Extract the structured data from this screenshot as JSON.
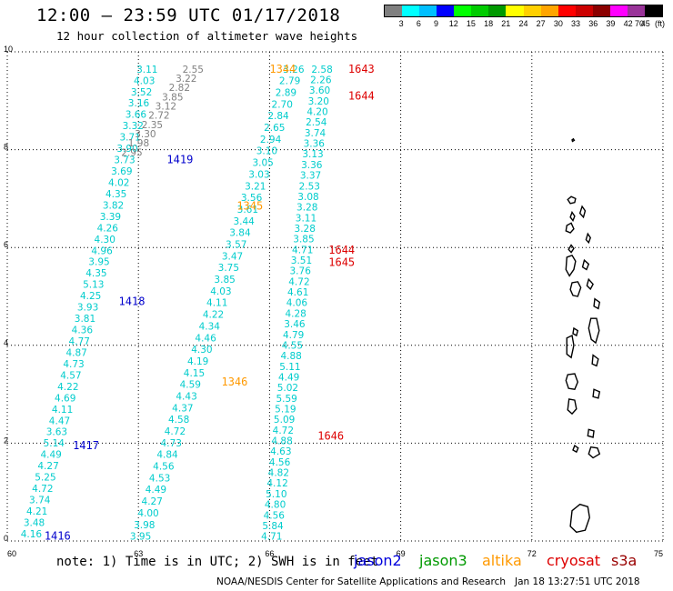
{
  "header": {
    "title": "12:00 – 23:59 UTC 01/17/2018",
    "subtitle": "12 hour collection of altimeter wave heights"
  },
  "legend": {
    "colors": [
      "#7f7f7f",
      "#00ffff",
      "#00bfff",
      "#0000ff",
      "#00ff00",
      "#00cc00",
      "#009900",
      "#ffff00",
      "#ffd000",
      "#ffa500",
      "#ff0000",
      "#cc0000",
      "#8b0000",
      "#ff00ff",
      "#993399",
      "#000000"
    ],
    "labels": [
      "3",
      "6",
      "9",
      "12",
      "15",
      "18",
      "21",
      "24",
      "27",
      "30",
      "33",
      "36",
      "39",
      "42",
      "45",
      "70"
    ],
    "unit": "(ft)"
  },
  "map": {
    "lon_min": 60,
    "lon_max": 75,
    "lat_min": 0,
    "lat_max": 10,
    "x_ticks": [
      "60",
      "63",
      "66",
      "69",
      "72",
      "75"
    ],
    "y_ticks": [
      "0",
      "2",
      "4",
      "6",
      "8",
      "10"
    ],
    "grid": "dotted",
    "tracks": [
      {
        "name": "pass_a",
        "lon": [
          60.55,
          63.2
        ],
        "lat": [
          0.15,
          9.65
        ],
        "color": "#00cccc",
        "values": [
          "4.16",
          "3.48",
          "4.21",
          "3.74",
          "4.72",
          "5.25",
          "4.27",
          "4.49",
          "5.14",
          "3.63",
          "4.47",
          "4.11",
          "4.69",
          "4.22",
          "4.57",
          "4.73",
          "4.87",
          "4.77",
          "4.36",
          "3.81",
          "3.93",
          "4.25",
          "5.13",
          "4.35",
          "3.95",
          "4.96",
          "4.30",
          "4.26",
          "3.39",
          "3.82",
          "4.35",
          "4.02",
          "3.69",
          "3.73",
          "3.90",
          "3.71",
          "3.32",
          "3.66",
          "3.16",
          "3.52",
          "4.03",
          "3.11"
        ]
      },
      {
        "name": "pass_b_upper",
        "lon": [
          62.85,
          64.25
        ],
        "lat": [
          7.95,
          9.65
        ],
        "color": "#808080",
        "values": [
          "2.95",
          "1.98",
          "3.30",
          "2.35",
          "2.72",
          "3.12",
          "3.85",
          "2.82",
          "3.22",
          "2.55"
        ]
      },
      {
        "name": "pass_c",
        "lon": [
          63.05,
          66.55
        ],
        "lat": [
          0.1,
          9.65
        ],
        "color": "#00cccc",
        "values": [
          "3.95",
          "3.98",
          "4.00",
          "4.27",
          "4.49",
          "4.53",
          "4.56",
          "4.84",
          "4.73",
          "4.72",
          "4.58",
          "4.37",
          "4.43",
          "4.59",
          "4.15",
          "4.19",
          "4.30",
          "4.46",
          "4.34",
          "4.22",
          "4.11",
          "4.03",
          "3.85",
          "3.75",
          "3.47",
          "3.57",
          "3.84",
          "3.44",
          "3.61",
          "3.56",
          "3.21",
          "3.03",
          "3.05",
          "3.10",
          "2.94",
          "2.65",
          "2.84",
          "2.70",
          "2.89",
          "2.79",
          "3.26"
        ]
      },
      {
        "name": "pass_d",
        "lon": [
          66.05,
          67.2
        ],
        "lat": [
          0.1,
          9.65
        ],
        "color": "#00cccc",
        "values": [
          "4.71",
          "5.84",
          "4.56",
          "4.80",
          "5.10",
          "4.12",
          "4.82",
          "4.56",
          "4.63",
          "4.88",
          "4.72",
          "5.09",
          "5.19",
          "5.59",
          "5.02",
          "4.49",
          "5.11",
          "4.88",
          "4.55",
          "4.79",
          "3.46",
          "4.28",
          "4.06",
          "4.61",
          "4.72",
          "3.76",
          "3.51",
          "4.71",
          "3.85",
          "3.28",
          "3.11",
          "3.28",
          "3.08",
          "2.53",
          "3.37",
          "3.36",
          "3.13",
          "3.36",
          "3.74",
          "2.54",
          "4.20",
          "3.20",
          "3.60",
          "2.26",
          "2.58"
        ]
      }
    ],
    "time_labels": [
      {
        "text": "1416",
        "lon": 61.15,
        "lat": 0.1,
        "color": "#0000cc"
      },
      {
        "text": "1417",
        "lon": 61.8,
        "lat": 1.95,
        "color": "#0000cc"
      },
      {
        "text": "1418",
        "lon": 62.85,
        "lat": 4.9,
        "color": "#0000cc"
      },
      {
        "text": "1419",
        "lon": 63.95,
        "lat": 7.8,
        "color": "#0000cc"
      },
      {
        "text": "1345",
        "lon": 65.55,
        "lat": 6.85,
        "color": "#ff9900"
      },
      {
        "text": "1346",
        "lon": 65.2,
        "lat": 3.25,
        "color": "#ff9900"
      },
      {
        "text": "1344",
        "lon": 66.3,
        "lat": 9.65,
        "color": "#ff9900"
      },
      {
        "text": "1643",
        "lon": 68.1,
        "lat": 9.65,
        "color": "#dd0000"
      },
      {
        "text": "1644",
        "lon": 68.1,
        "lat": 9.1,
        "color": "#dd0000"
      },
      {
        "text": "1644",
        "lon": 67.65,
        "lat": 5.95,
        "color": "#dd0000"
      },
      {
        "text": "1645",
        "lon": 67.65,
        "lat": 5.7,
        "color": "#dd0000"
      },
      {
        "text": "1646",
        "lon": 67.4,
        "lat": 2.15,
        "color": "#dd0000"
      }
    ],
    "islands": [
      [
        [
          72.92,
          8.2
        ],
        [
          72.95,
          8.22
        ],
        [
          72.97,
          8.19
        ],
        [
          72.93,
          8.17
        ]
      ],
      [
        [
          72.82,
          6.98
        ],
        [
          72.9,
          7.04
        ],
        [
          73.0,
          7.0
        ],
        [
          72.98,
          6.92
        ],
        [
          72.88,
          6.9
        ]
      ],
      [
        [
          73.15,
          6.84
        ],
        [
          73.22,
          6.75
        ],
        [
          73.18,
          6.62
        ],
        [
          73.1,
          6.7
        ]
      ],
      [
        [
          72.92,
          6.72
        ],
        [
          72.98,
          6.64
        ],
        [
          72.94,
          6.55
        ],
        [
          72.88,
          6.62
        ]
      ],
      [
        [
          72.8,
          6.45
        ],
        [
          72.9,
          6.5
        ],
        [
          72.96,
          6.38
        ],
        [
          72.88,
          6.3
        ],
        [
          72.78,
          6.34
        ]
      ],
      [
        [
          73.28,
          6.28
        ],
        [
          73.34,
          6.2
        ],
        [
          73.3,
          6.1
        ],
        [
          73.24,
          6.16
        ]
      ],
      [
        [
          72.9,
          6.05
        ],
        [
          72.96,
          5.98
        ],
        [
          72.9,
          5.9
        ],
        [
          72.84,
          5.96
        ]
      ],
      [
        [
          72.8,
          5.8
        ],
        [
          72.92,
          5.84
        ],
        [
          73.0,
          5.72
        ],
        [
          72.96,
          5.55
        ],
        [
          72.86,
          5.42
        ],
        [
          72.78,
          5.55
        ]
      ],
      [
        [
          73.2,
          5.74
        ],
        [
          73.3,
          5.66
        ],
        [
          73.25,
          5.55
        ],
        [
          73.16,
          5.6
        ]
      ],
      [
        [
          72.92,
          5.28
        ],
        [
          73.05,
          5.3
        ],
        [
          73.12,
          5.18
        ],
        [
          73.05,
          5.0
        ],
        [
          72.94,
          5.02
        ],
        [
          72.88,
          5.14
        ]
      ],
      [
        [
          73.3,
          5.35
        ],
        [
          73.4,
          5.25
        ],
        [
          73.34,
          5.15
        ],
        [
          73.26,
          5.22
        ]
      ],
      [
        [
          73.44,
          4.95
        ],
        [
          73.55,
          4.88
        ],
        [
          73.52,
          4.75
        ],
        [
          73.42,
          4.8
        ]
      ],
      [
        [
          73.35,
          4.55
        ],
        [
          73.48,
          4.55
        ],
        [
          73.54,
          4.3
        ],
        [
          73.46,
          4.05
        ],
        [
          73.36,
          4.12
        ],
        [
          73.3,
          4.35
        ]
      ],
      [
        [
          72.96,
          4.35
        ],
        [
          73.05,
          4.3
        ],
        [
          73.02,
          4.2
        ],
        [
          72.94,
          4.24
        ]
      ],
      [
        [
          72.8,
          4.15
        ],
        [
          72.92,
          4.2
        ],
        [
          72.96,
          4.0
        ],
        [
          72.9,
          3.75
        ],
        [
          72.8,
          3.82
        ]
      ],
      [
        [
          73.4,
          3.8
        ],
        [
          73.52,
          3.72
        ],
        [
          73.48,
          3.58
        ],
        [
          73.38,
          3.62
        ]
      ],
      [
        [
          72.82,
          3.4
        ],
        [
          72.98,
          3.42
        ],
        [
          73.05,
          3.25
        ],
        [
          72.98,
          3.1
        ],
        [
          72.84,
          3.12
        ],
        [
          72.78,
          3.28
        ]
      ],
      [
        [
          73.42,
          3.1
        ],
        [
          73.55,
          3.05
        ],
        [
          73.52,
          2.92
        ],
        [
          73.4,
          2.95
        ]
      ],
      [
        [
          72.85,
          2.9
        ],
        [
          72.98,
          2.88
        ],
        [
          73.02,
          2.7
        ],
        [
          72.92,
          2.6
        ],
        [
          72.82,
          2.68
        ]
      ],
      [
        [
          73.3,
          2.28
        ],
        [
          73.42,
          2.25
        ],
        [
          73.4,
          2.12
        ],
        [
          73.28,
          2.15
        ]
      ],
      [
        [
          73.35,
          1.92
        ],
        [
          73.5,
          1.9
        ],
        [
          73.55,
          1.78
        ],
        [
          73.4,
          1.7
        ],
        [
          73.3,
          1.78
        ]
      ],
      [
        [
          72.98,
          1.95
        ],
        [
          73.06,
          1.9
        ],
        [
          73.02,
          1.82
        ],
        [
          72.94,
          1.86
        ]
      ],
      [
        [
          72.92,
          0.62
        ],
        [
          73.1,
          0.75
        ],
        [
          73.28,
          0.7
        ],
        [
          73.32,
          0.48
        ],
        [
          73.22,
          0.22
        ],
        [
          73.02,
          0.18
        ],
        [
          72.88,
          0.3
        ]
      ]
    ]
  },
  "footer": {
    "note": "note: 1) Time is in UTC; 2) SWH is in feet",
    "missions": [
      {
        "name": "jason2",
        "color": "#0000dd"
      },
      {
        "name": "jason3",
        "color": "#009900"
      },
      {
        "name": "altika",
        "color": "#ff9900"
      },
      {
        "name": "cryosat",
        "color": "#dd0000"
      },
      {
        "name": "s3a",
        "color": "#990000"
      }
    ],
    "credit": "NOAA/NESDIS Center for Satellite Applications and Research   Jan 18 13:27:51 UTC 2018"
  }
}
